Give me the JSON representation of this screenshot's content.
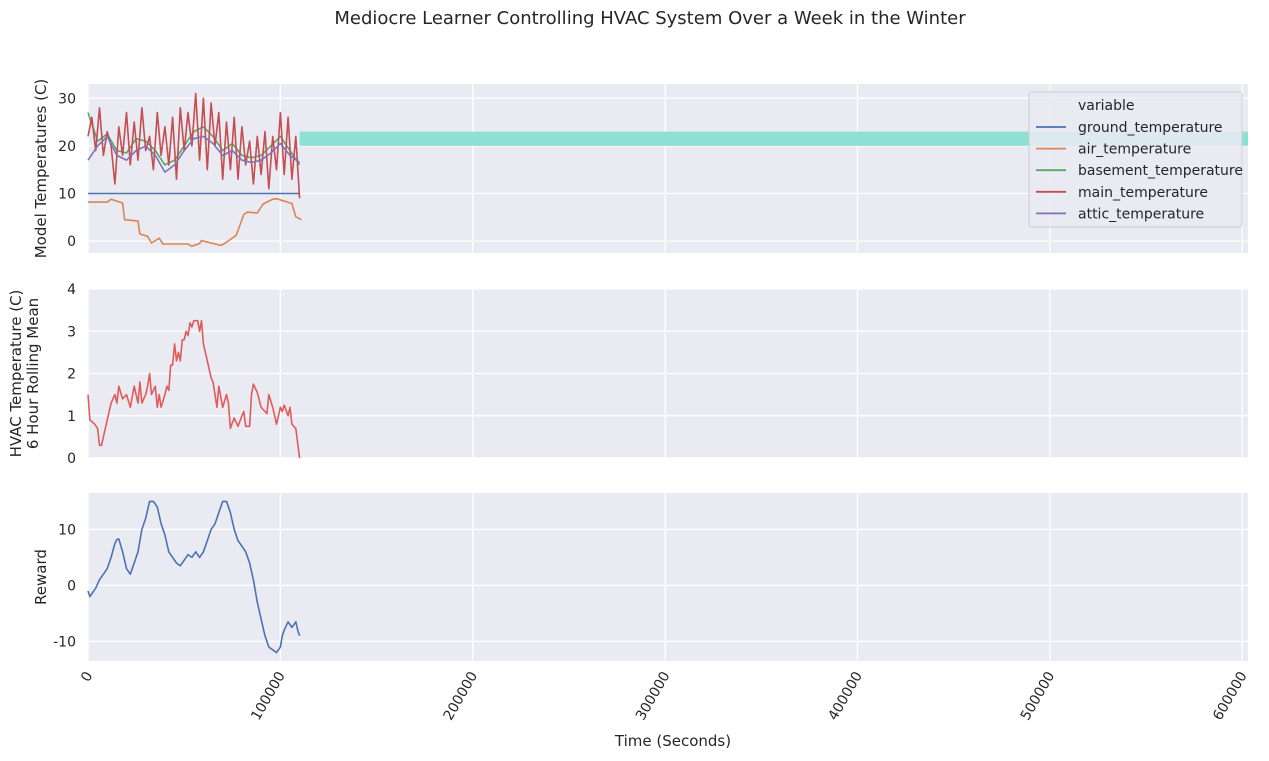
{
  "figure_title": "Mediocre Learner Controlling HVAC System Over a Week in the Winter",
  "colors": {
    "panel_bg": "#eaeaf2",
    "comfort_band": "#8fe0d4",
    "ground_temperature": "#4c72b0",
    "air_temperature": "#dd8452",
    "basement_temperature": "#55a868",
    "main_temperature": "#c44e52",
    "attic_temperature": "#8172b3",
    "hvac_line": "#e05c5c",
    "reward_line": "#4c72b0"
  },
  "chart_data": [
    {
      "type": "line",
      "ylabel": "Model Temperatures (C)",
      "xlim": [
        0,
        603000
      ],
      "ylim": [
        -2.5,
        33
      ],
      "yticks": [
        0,
        10,
        20,
        30
      ],
      "grid": true,
      "legend": {
        "title": "variable",
        "placement": "top-right"
      },
      "band": {
        "y0": 20,
        "y1": 23,
        "x0": 110000,
        "x1": 603000
      },
      "series": [
        {
          "name": "ground_temperature",
          "x": [
            0,
            110000
          ],
          "y": [
            10,
            10
          ]
        },
        {
          "name": "air_temperature",
          "x": [
            0,
            10000,
            12000,
            18000,
            19000,
            26000,
            27000,
            31000,
            33000,
            37000,
            39000,
            52000,
            54000,
            58000,
            59000,
            69000,
            71000,
            77000,
            79000,
            81000,
            83000,
            88000,
            91000,
            96000,
            98000,
            106000,
            108000,
            111000
          ],
          "y": [
            8.2,
            8.2,
            8.8,
            8.0,
            4.5,
            4.2,
            1.5,
            1.0,
            -0.4,
            0.6,
            -0.6,
            -0.6,
            -1.1,
            -0.5,
            0.1,
            -0.9,
            -0.5,
            1.2,
            3.4,
            5.6,
            6.1,
            5.9,
            7.8,
            8.8,
            8.9,
            7.9,
            5.1,
            4.5
          ]
        },
        {
          "name": "basement_temperature",
          "x": [
            0,
            5000,
            10000,
            15000,
            20000,
            25000,
            30000,
            35000,
            40000,
            45000,
            50000,
            55000,
            60000,
            65000,
            70000,
            75000,
            80000,
            85000,
            90000,
            95000,
            100000,
            105000,
            110000
          ],
          "y": [
            27,
            21,
            22.5,
            19,
            18.5,
            21.5,
            21,
            19,
            16,
            17,
            20,
            23,
            24,
            22,
            19,
            20.5,
            18,
            17.5,
            18,
            20,
            22,
            19,
            16
          ]
        },
        {
          "name": "main_temperature",
          "x": [
            0,
            2000,
            4000,
            6000,
            8000,
            10000,
            12000,
            14000,
            16000,
            18000,
            20000,
            22000,
            24000,
            26000,
            28000,
            30000,
            32000,
            34000,
            36000,
            38000,
            40000,
            42000,
            44000,
            46000,
            48000,
            50000,
            52000,
            54000,
            56000,
            58000,
            60000,
            62000,
            64000,
            66000,
            68000,
            70000,
            72000,
            74000,
            76000,
            78000,
            80000,
            82000,
            84000,
            86000,
            88000,
            90000,
            92000,
            94000,
            96000,
            98000,
            100000,
            102000,
            104000,
            106000,
            108000,
            110000
          ],
          "y": [
            22,
            26,
            19,
            28,
            18,
            23,
            20,
            12,
            24,
            18,
            27,
            16,
            25,
            17,
            28,
            19,
            22,
            15,
            27,
            18,
            24,
            16,
            26,
            13,
            28,
            19,
            27,
            20,
            31,
            17,
            30,
            15,
            29,
            20,
            27,
            13,
            25,
            15,
            26,
            13,
            24,
            16,
            21,
            12,
            22,
            14,
            23,
            11,
            22,
            15,
            27,
            14,
            26,
            13,
            22,
            9
          ]
        },
        {
          "name": "attic_temperature",
          "x": [
            0,
            5000,
            10000,
            15000,
            20000,
            25000,
            30000,
            35000,
            40000,
            45000,
            50000,
            55000,
            60000,
            65000,
            70000,
            75000,
            80000,
            85000,
            90000,
            95000,
            100000,
            105000,
            110000
          ],
          "y": [
            17,
            20,
            22,
            18,
            17,
            19,
            20,
            18,
            14.5,
            16,
            19,
            21.5,
            22,
            20.5,
            18,
            19,
            17,
            16.5,
            17,
            18.5,
            20.5,
            18,
            16.5
          ]
        }
      ]
    },
    {
      "type": "line",
      "ylabel": "HVAC Temperature (C)\n6 Hour Rolling Mean",
      "xlim": [
        0,
        603000
      ],
      "ylim": [
        0,
        4
      ],
      "yticks": [
        0,
        1,
        2,
        3,
        4
      ],
      "grid": true,
      "series": [
        {
          "x": [
            0,
            1000,
            3500,
            5000,
            6000,
            7000,
            9000,
            12000,
            14000,
            15000,
            16000,
            18000,
            20000,
            22000,
            24000,
            26000,
            27000,
            28000,
            30000,
            31000,
            32000,
            33000,
            34000,
            35000,
            36000,
            37000,
            38000,
            40000,
            41000,
            42000,
            43000,
            44000,
            45000,
            46000,
            47000,
            48000,
            49000,
            50000,
            51000,
            52000,
            53000,
            54000,
            55000,
            56000,
            57000,
            58000,
            59000,
            60000,
            62000,
            64000,
            65000,
            66000,
            67000,
            68000,
            70000,
            72000,
            73000,
            74000,
            76000,
            78000,
            80000,
            81000,
            82000,
            84000,
            85000,
            86000,
            88000,
            90000,
            92000,
            93000,
            94000,
            96000,
            98000,
            100000,
            101000,
            102000,
            104000,
            105000,
            106000,
            108000,
            110000
          ],
          "y": [
            1.5,
            0.9,
            0.8,
            0.7,
            0.3,
            0.3,
            0.7,
            1.3,
            1.5,
            1.3,
            1.7,
            1.4,
            1.5,
            1.2,
            1.7,
            1.3,
            1.8,
            1.3,
            1.5,
            1.7,
            2.0,
            1.5,
            1.6,
            1.7,
            1.2,
            1.5,
            1.2,
            1.5,
            1.7,
            1.6,
            2.2,
            2.2,
            2.7,
            2.3,
            2.5,
            2.3,
            2.8,
            2.8,
            3.0,
            2.9,
            3.2,
            3.1,
            3.25,
            3.25,
            3.25,
            3.0,
            3.25,
            2.7,
            2.3,
            1.9,
            1.8,
            1.5,
            1.2,
            1.7,
            1.2,
            1.5,
            1.3,
            0.7,
            0.95,
            0.75,
            1.0,
            1.1,
            0.75,
            0.75,
            1.5,
            1.75,
            1.55,
            1.2,
            1.1,
            1.05,
            1.5,
            1.2,
            0.8,
            1.2,
            1.1,
            1.25,
            1.0,
            1.2,
            0.8,
            0.7,
            0.0
          ]
        }
      ]
    },
    {
      "type": "line",
      "ylabel": "Reward",
      "xlabel": "Time (Seconds)",
      "xlim": [
        0,
        603000
      ],
      "ylim": [
        -13.5,
        16.5
      ],
      "yticks": [
        -10,
        0,
        10
      ],
      "xticks": [
        0,
        100000,
        200000,
        300000,
        400000,
        500000,
        600000
      ],
      "xtick_labels": [
        "0",
        "100000",
        "200000",
        "300000",
        "400000",
        "500000",
        "600000"
      ],
      "grid": true,
      "series": [
        {
          "x": [
            0,
            1000,
            2000,
            4000,
            6000,
            8000,
            10000,
            12000,
            14000,
            15000,
            16000,
            18000,
            20000,
            22000,
            24000,
            26000,
            28000,
            30000,
            32000,
            34000,
            36000,
            38000,
            40000,
            42000,
            44000,
            46000,
            48000,
            50000,
            52000,
            54000,
            56000,
            58000,
            60000,
            62000,
            64000,
            66000,
            68000,
            70000,
            72000,
            74000,
            76000,
            78000,
            80000,
            82000,
            84000,
            86000,
            88000,
            90000,
            92000,
            94000,
            96000,
            98000,
            100000,
            101000,
            102000,
            104000,
            106000,
            108000,
            109000,
            110000
          ],
          "y": [
            -1,
            -2,
            -1.5,
            -0.5,
            1,
            2,
            3,
            5,
            7.5,
            8.2,
            8.3,
            6,
            3,
            2,
            4,
            6,
            10,
            12,
            15,
            15,
            14,
            11,
            9,
            6,
            5,
            4,
            3.5,
            4.5,
            5.5,
            5,
            6,
            5,
            6,
            8,
            10,
            11,
            13,
            15,
            15,
            13,
            10,
            8,
            7,
            6,
            4,
            1,
            -3,
            -6,
            -9,
            -11,
            -11.5,
            -12,
            -11,
            -9,
            -8,
            -6.5,
            -7.5,
            -6.5,
            -8,
            -9
          ]
        }
      ]
    }
  ]
}
